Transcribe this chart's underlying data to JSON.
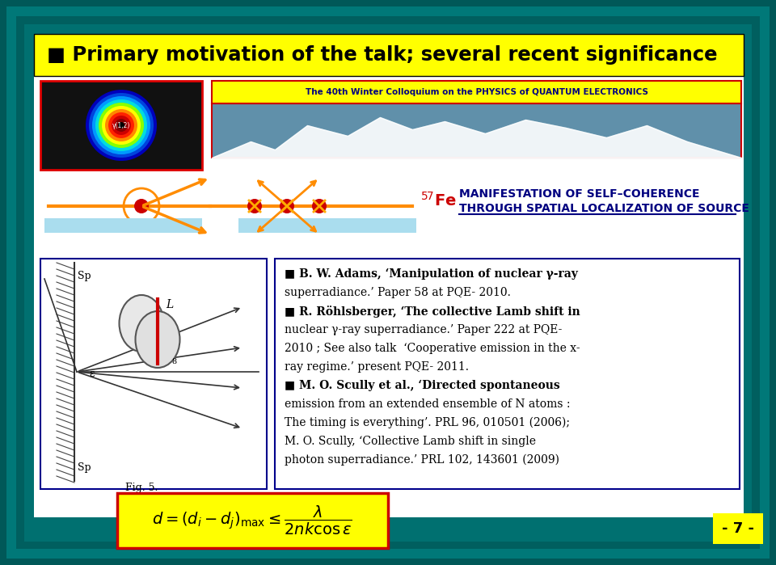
{
  "title": "Primary motivation of the talk; several recent significance",
  "bg_outer": "#005a5a",
  "bg_mid": "#007a7a",
  "title_box_color": "#ffff00",
  "content_bg": "#ffffff",
  "page_number": "- 7 -",
  "page_num_box": "#ffff00",
  "formula_box": "#ffff00",
  "formula_border": "#cc0000",
  "colloquium_text": "The 40th Winter Colloquium on the PHYSICS of QUANTUM ELECTRONICS",
  "banner_bg": "#ffff00",
  "banner_border": "#cc0000",
  "right_text_blocks": [
    [
      true,
      "■ B. W. Adams, ‘Manipulation of nuclear γ-ray"
    ],
    [
      false,
      "superradiance.’ Paper 58 at PQE- 2010."
    ],
    [
      true,
      "■ R. Röhlsberger, ‘The collective Lamb shift in"
    ],
    [
      false,
      "nuclear γ-ray superradiance.’ Paper 222 at PQE-"
    ],
    [
      false,
      "2010 ; See also talk  ‘Cooperative emission in the x-"
    ],
    [
      false,
      "ray regime.’ present PQE- 2011."
    ],
    [
      true,
      "■ M. O. Scully et al., ‘Directed spontaneous"
    ],
    [
      false,
      "emission from an extended ensemble of N atoms :"
    ],
    [
      false,
      "The timing is everything’. PRL 96, 010501 (2006);"
    ],
    [
      false,
      "M. O. Scully, ‘Collective Lamb shift in single"
    ],
    [
      false,
      "photon superradiance.’ PRL 102, 143601 (2009)"
    ]
  ],
  "manifestation_line1": "MANIFESTATION OF SELF–COHERENCE",
  "manifestation_line2": "THROUGH SPATIAL LOCALIZATION OF SOURCE"
}
